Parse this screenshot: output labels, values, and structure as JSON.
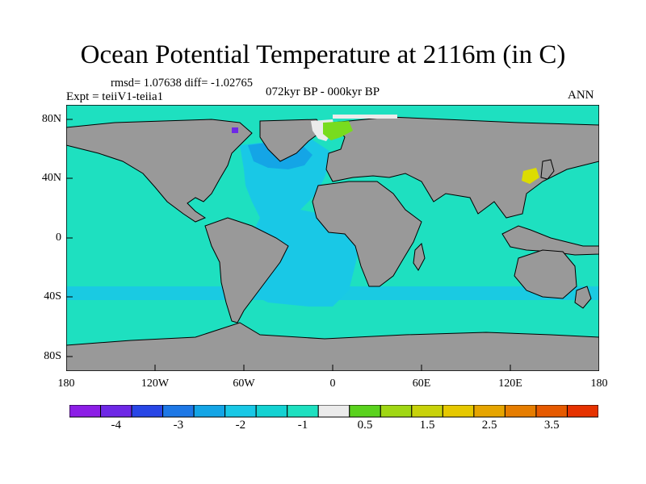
{
  "header": {
    "title": "Ocean Potential Temperature at 2116m (in C)",
    "stats": "rmsd= 1.07638 diff= -1.02765",
    "experiment": "Expt = teiiV1-teiia1",
    "period": "072kyr BP - 000kyr BP",
    "season": "ANN"
  },
  "map": {
    "ocean_color": "#1ee0c0",
    "land_color": "#999999",
    "lat_labels": [
      "80N",
      "40N",
      "0",
      "40S",
      "80S"
    ],
    "lon_labels": [
      "180",
      "120W",
      "60W",
      "0",
      "60E",
      "120E",
      "180"
    ],
    "anomaly_regions": [
      {
        "name": "atlantic-deep-water",
        "color": "#19c8e6"
      },
      {
        "name": "north-atlantic",
        "color": "#14a5e6"
      },
      {
        "name": "nordic-seas",
        "color": "#ebebeb"
      },
      {
        "name": "barents-sea",
        "color": "#78dc1e"
      },
      {
        "name": "sea-of-japan",
        "color": "#dcdc00"
      },
      {
        "name": "hudson-bay",
        "color": "#6e28e6"
      }
    ]
  },
  "colorbar": {
    "colors": [
      "#8c1ee6",
      "#6e28e6",
      "#2846e6",
      "#1e78e6",
      "#14a5e6",
      "#19c8e6",
      "#14d2d2",
      "#1ee0c0",
      "#ebebeb",
      "#5ad21e",
      "#a0d714",
      "#c8d20a",
      "#e6c800",
      "#e6a500",
      "#e67d00",
      "#e65a00",
      "#e63200"
    ],
    "labels": [
      "-4",
      "-3",
      "-2",
      "-1",
      "0.5",
      "1.5",
      "2.5",
      "3.5"
    ]
  }
}
